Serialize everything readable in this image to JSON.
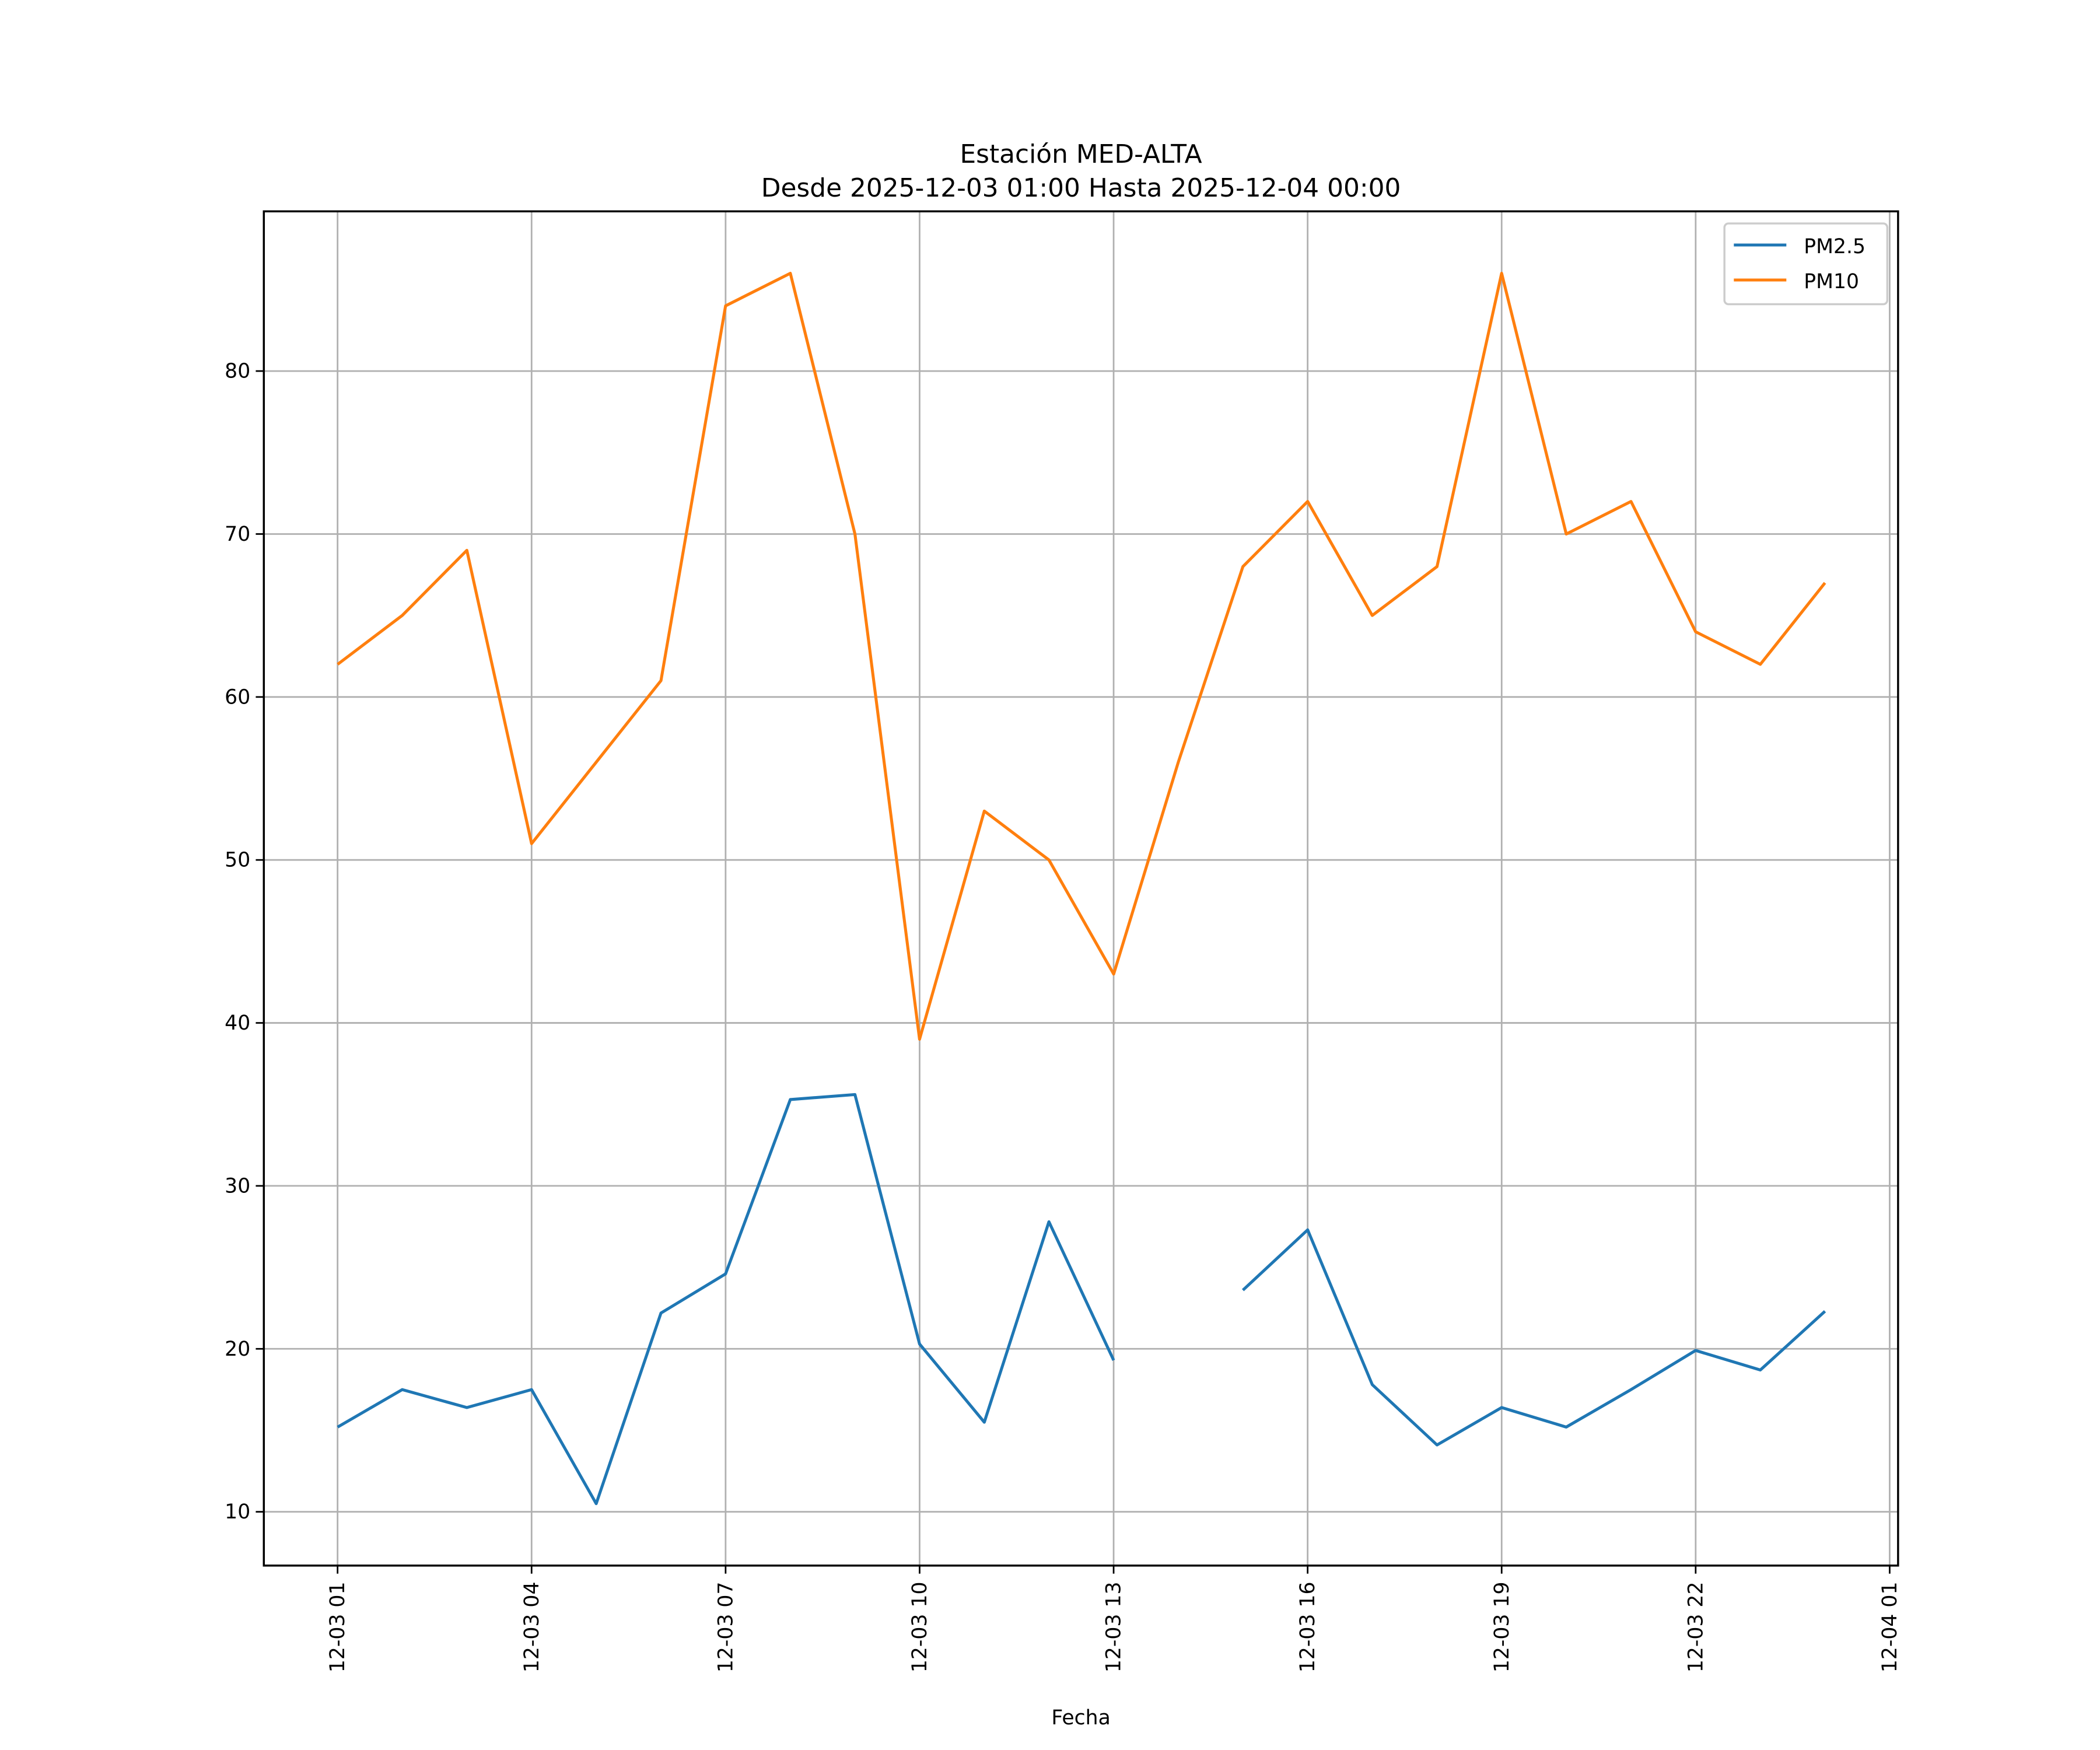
{
  "chart_data": {
    "type": "line",
    "title": "Estación MED-ALTA",
    "subtitle": "Desde 2025-12-03 01:00 Hasta 2025-12-04 00:00",
    "xlabel": "Fecha",
    "ylabel": "",
    "x": [
      "2025-12-03 01:00",
      "2025-12-03 02:00",
      "2025-12-03 03:00",
      "2025-12-03 04:00",
      "2025-12-03 05:00",
      "2025-12-03 06:00",
      "2025-12-03 07:00",
      "2025-12-03 08:00",
      "2025-12-03 09:00",
      "2025-12-03 10:00",
      "2025-12-03 11:00",
      "2025-12-03 12:00",
      "2025-12-03 13:00",
      "2025-12-03 14:00",
      "2025-12-03 15:00",
      "2025-12-03 16:00",
      "2025-12-03 17:00",
      "2025-12-03 18:00",
      "2025-12-03 19:00",
      "2025-12-03 20:00",
      "2025-12-03 21:00",
      "2025-12-03 22:00",
      "2025-12-03 23:00",
      "2025-12-04 00:00"
    ],
    "series": [
      {
        "name": "PM2.5",
        "color": "#1f77b4",
        "values": [
          15.2,
          17.5,
          16.4,
          17.5,
          10.5,
          22.2,
          24.6,
          35.3,
          35.6,
          20.3,
          15.5,
          27.8,
          19.3,
          null,
          23.6,
          27.3,
          17.8,
          14.1,
          16.4,
          15.2,
          17.5,
          19.9,
          18.7,
          22.3
        ]
      },
      {
        "name": "PM10",
        "color": "#ff7f0e",
        "values": [
          62,
          65,
          69,
          51,
          56,
          61,
          84,
          86,
          70,
          39,
          53,
          50,
          43,
          56,
          68,
          72,
          65,
          68,
          86,
          70,
          72,
          64,
          62,
          67
        ]
      }
    ],
    "xticks": [
      {
        "label": "12-03 01",
        "hour": 0
      },
      {
        "label": "12-03 04",
        "hour": 3
      },
      {
        "label": "12-03 07",
        "hour": 6
      },
      {
        "label": "12-03 10",
        "hour": 9
      },
      {
        "label": "12-03 13",
        "hour": 12
      },
      {
        "label": "12-03 16",
        "hour": 15
      },
      {
        "label": "12-03 19",
        "hour": 18
      },
      {
        "label": "12-03 22",
        "hour": 21
      },
      {
        "label": "12-04 01",
        "hour": 24
      }
    ],
    "yticks": [
      10,
      20,
      30,
      40,
      50,
      60,
      70,
      80
    ],
    "xlim_hours": [
      -1.14,
      24.13
    ],
    "ylim": [
      6.7,
      89.8
    ],
    "grid": true,
    "legend": "top-right"
  }
}
